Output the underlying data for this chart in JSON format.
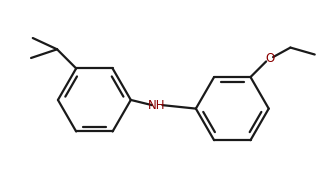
{
  "bg_color": "#ffffff",
  "line_color": "#1a1a1a",
  "nh_color": "#8B0000",
  "o_color": "#8B0000",
  "line_width": 1.6,
  "font_size": 8.5,
  "figsize": [
    3.18,
    1.86
  ],
  "dpi": 100
}
